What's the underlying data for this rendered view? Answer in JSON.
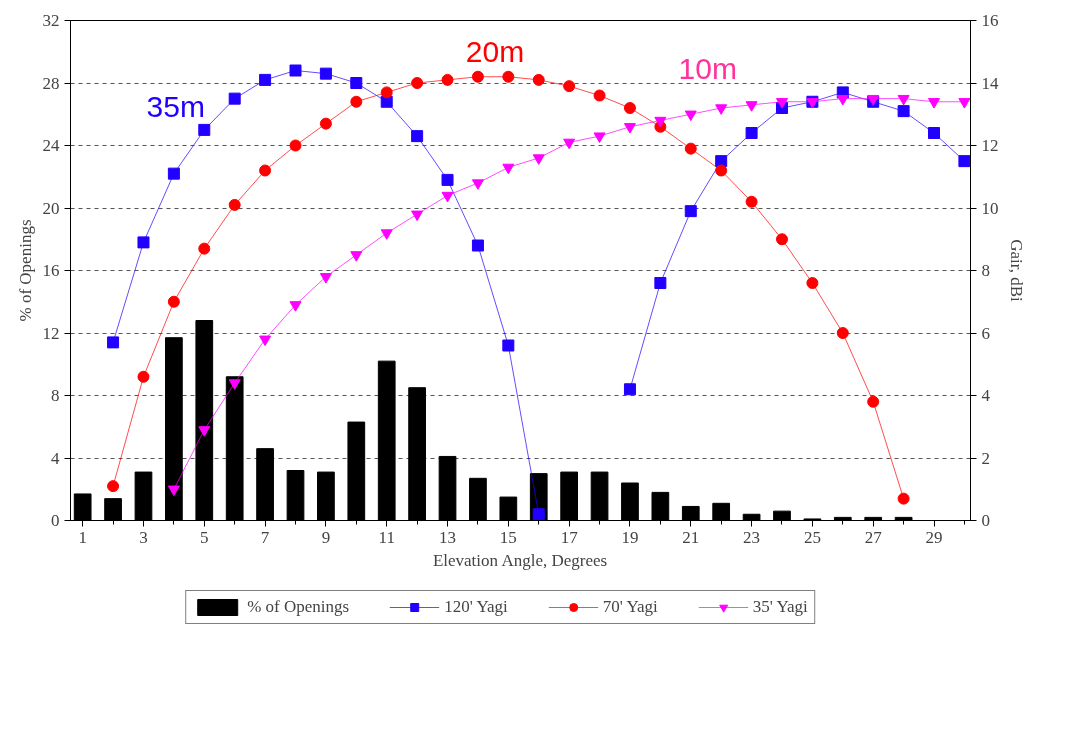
{
  "chart_data": {
    "type": "bar",
    "xlabel": "Elevation Angle, Degrees",
    "ylabel": "% of Openings",
    "y2label": "Gair, dBi",
    "x": [
      1,
      2,
      3,
      4,
      5,
      6,
      7,
      8,
      9,
      10,
      11,
      12,
      13,
      14,
      15,
      16,
      17,
      18,
      19,
      20,
      21,
      22,
      23,
      24,
      25,
      26,
      27,
      28,
      29,
      30
    ],
    "series": [
      {
        "name": "% of Openings",
        "color": "#000000",
        "values": [
          1.7,
          1.4,
          3.1,
          11.7,
          12.8,
          9.2,
          4.6,
          3.2,
          3.1,
          6.3,
          10.2,
          8.5,
          4.1,
          2.7,
          1.5,
          3.0,
          3.1,
          3.1,
          2.4,
          1.8,
          0.9,
          1.1,
          0.4,
          0.6,
          0.1,
          0.2,
          0.2,
          0.2,
          0,
          0
        ]
      },
      {
        "name": "120' Yagi",
        "type": "line",
        "axis": "y2",
        "marker": "square",
        "color": "#2200ff",
        "values": [
          null,
          5.7,
          8.9,
          11.1,
          12.5,
          13.5,
          14.1,
          14.4,
          14.3,
          14.0,
          13.4,
          12.3,
          10.9,
          8.8,
          5.6,
          0.2,
          null,
          null,
          4.2,
          7.6,
          9.9,
          11.5,
          12.4,
          13.2,
          13.4,
          13.7,
          13.4,
          13.1,
          12.4,
          11.5
        ]
      },
      {
        "name": "70' Yagi",
        "type": "line",
        "axis": "y2",
        "marker": "circle",
        "color": "#ff0000",
        "values": [
          null,
          1.1,
          4.6,
          7.0,
          8.7,
          10.1,
          11.2,
          12.0,
          12.7,
          13.4,
          13.7,
          14.0,
          14.1,
          14.2,
          14.2,
          14.1,
          13.9,
          13.6,
          13.2,
          12.6,
          11.9,
          11.2,
          10.2,
          9.0,
          7.6,
          6.0,
          3.8,
          0.7,
          null,
          null
        ]
      },
      {
        "name": "35' Yagi",
        "type": "line",
        "axis": "y2",
        "marker": "triangle",
        "color": "#ff00ff",
        "values": [
          null,
          null,
          null,
          1.0,
          2.9,
          4.4,
          5.8,
          6.9,
          7.8,
          8.5,
          9.2,
          9.8,
          10.4,
          10.8,
          11.3,
          11.6,
          12.1,
          12.3,
          12.6,
          12.8,
          13.0,
          13.2,
          13.3,
          13.4,
          13.4,
          13.5,
          13.5,
          13.5,
          13.4,
          13.4
        ]
      }
    ],
    "annotations": [
      "35m",
      "20m",
      "10m"
    ],
    "xlim": [
      0.6,
      30.2
    ],
    "ylim": [
      0,
      32
    ],
    "y2lim": [
      0,
      16
    ],
    "xticks": [
      1,
      {
        "value": 2,
        "label": null
      },
      3,
      {
        "value": 4,
        "label": null
      },
      5,
      {
        "value": 6,
        "label": null
      },
      7,
      {
        "value": 8,
        "label": null
      },
      9,
      {
        "value": 10,
        "label": null
      },
      11,
      {
        "value": 12,
        "label": null
      },
      13,
      {
        "value": 14,
        "label": null
      },
      15,
      {
        "value": 16,
        "label": null
      },
      17,
      {
        "value": 18,
        "label": null
      },
      19,
      {
        "value": 20,
        "label": null
      },
      21,
      {
        "value": 22,
        "label": null
      },
      23,
      {
        "value": 24,
        "label": null
      },
      25,
      {
        "value": 26,
        "label": null
      },
      27,
      {
        "value": 28,
        "label": null
      },
      29,
      {
        "value": 30,
        "label": null
      }
    ],
    "yticks": [
      0,
      4,
      8,
      12,
      16,
      20,
      24,
      28,
      32
    ],
    "y2ticks": [
      0,
      2,
      4,
      6,
      8,
      10,
      12,
      14,
      16
    ],
    "grid": "y",
    "legend": "bottom"
  }
}
